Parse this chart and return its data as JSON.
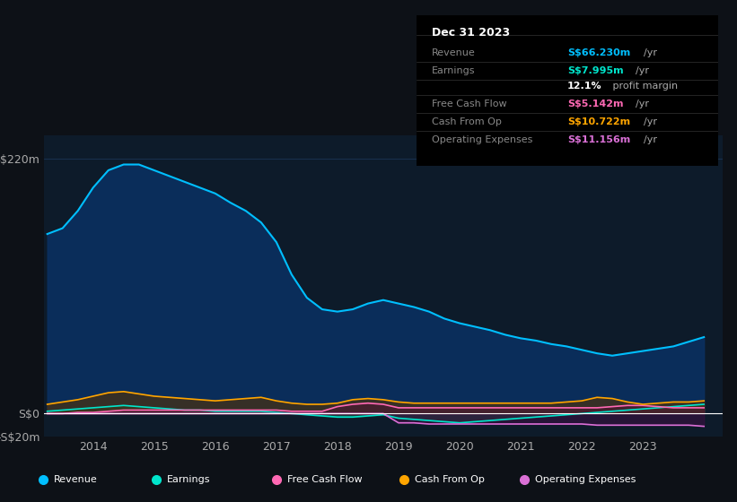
{
  "bg_color": "#0d1117",
  "plot_bg_color": "#0d1b2a",
  "title_box_color": "#000000",
  "grid_color": "#1e3a5f",
  "zero_line_color": "#ffffff",
  "ylabel_text": "S$220m",
  "ylabel_zero": "S$0",
  "ylabel_neg": "-S$20m",
  "ylim": [
    -20,
    240
  ],
  "yticks": [
    -20,
    0,
    220
  ],
  "xlim_start": 2013.2,
  "xlim_end": 2024.3,
  "xticks": [
    2014,
    2015,
    2016,
    2017,
    2018,
    2019,
    2020,
    2021,
    2022,
    2023
  ],
  "info_box": {
    "date": "Dec 31 2023",
    "rows": [
      {
        "label": "Revenue",
        "value": "S$66.230m",
        "unit": "/yr",
        "color": "#00bfff"
      },
      {
        "label": "Earnings",
        "value": "S$7.995m",
        "unit": "/yr",
        "color": "#00e5cc"
      },
      {
        "label": "",
        "value": "12.1%",
        "unit": " profit margin",
        "color": "#ffffff"
      },
      {
        "label": "Free Cash Flow",
        "value": "S$5.142m",
        "unit": "/yr",
        "color": "#ff69b4"
      },
      {
        "label": "Cash From Op",
        "value": "S$10.722m",
        "unit": "/yr",
        "color": "#ffa500"
      },
      {
        "label": "Operating Expenses",
        "value": "S$11.156m",
        "unit": "/yr",
        "color": "#da70d6"
      }
    ]
  },
  "legend": [
    {
      "label": "Revenue",
      "color": "#00bfff"
    },
    {
      "label": "Earnings",
      "color": "#00e5cc"
    },
    {
      "label": "Free Cash Flow",
      "color": "#ff69b4"
    },
    {
      "label": "Cash From Op",
      "color": "#ffa500"
    },
    {
      "label": "Operating Expenses",
      "color": "#da70d6"
    }
  ],
  "shaded_region_end": 2023.5,
  "revenue": {
    "color": "#00bfff",
    "fill_color": "#0a3060",
    "x": [
      2013.25,
      2013.5,
      2013.75,
      2014.0,
      2014.25,
      2014.5,
      2014.75,
      2015.0,
      2015.25,
      2015.5,
      2015.75,
      2016.0,
      2016.25,
      2016.5,
      2016.75,
      2017.0,
      2017.25,
      2017.5,
      2017.75,
      2018.0,
      2018.25,
      2018.5,
      2018.75,
      2019.0,
      2019.25,
      2019.5,
      2019.75,
      2020.0,
      2020.25,
      2020.5,
      2020.75,
      2021.0,
      2021.25,
      2021.5,
      2021.75,
      2022.0,
      2022.25,
      2022.5,
      2022.75,
      2023.0,
      2023.25,
      2023.5,
      2023.75,
      2024.0
    ],
    "y": [
      155,
      160,
      175,
      195,
      210,
      215,
      215,
      210,
      205,
      200,
      195,
      190,
      182,
      175,
      165,
      148,
      120,
      100,
      90,
      88,
      90,
      95,
      98,
      95,
      92,
      88,
      82,
      78,
      75,
      72,
      68,
      65,
      63,
      60,
      58,
      55,
      52,
      50,
      52,
      54,
      56,
      58,
      62,
      66
    ]
  },
  "earnings": {
    "color": "#00e5cc",
    "fill_color": "#1a4a40",
    "x": [
      2013.25,
      2013.5,
      2013.75,
      2014.0,
      2014.25,
      2014.5,
      2014.75,
      2015.0,
      2015.25,
      2015.5,
      2015.75,
      2016.0,
      2016.25,
      2016.5,
      2016.75,
      2017.0,
      2017.25,
      2017.5,
      2017.75,
      2018.0,
      2018.25,
      2018.5,
      2018.75,
      2019.0,
      2019.25,
      2019.5,
      2019.75,
      2020.0,
      2020.25,
      2020.5,
      2020.75,
      2021.0,
      2021.25,
      2021.5,
      2021.75,
      2022.0,
      2022.25,
      2022.5,
      2022.75,
      2023.0,
      2023.25,
      2023.5,
      2023.75,
      2024.0
    ],
    "y": [
      2,
      3,
      4,
      5,
      6,
      7,
      6,
      5,
      4,
      3,
      3,
      2,
      2,
      2,
      2,
      1,
      0,
      -1,
      -2,
      -3,
      -3,
      -2,
      -1,
      -4,
      -5,
      -6,
      -7,
      -8,
      -7,
      -6,
      -5,
      -4,
      -3,
      -2,
      -1,
      0,
      1,
      2,
      3,
      4,
      5,
      6,
      7,
      8
    ]
  },
  "free_cash_flow": {
    "color": "#ff69b4",
    "fill_color": "#4a1a30",
    "x": [
      2013.25,
      2013.5,
      2013.75,
      2014.0,
      2014.25,
      2014.5,
      2014.75,
      2015.0,
      2015.25,
      2015.5,
      2015.75,
      2016.0,
      2016.25,
      2016.5,
      2016.75,
      2017.0,
      2017.25,
      2017.5,
      2017.75,
      2018.0,
      2018.25,
      2018.5,
      2018.75,
      2019.0,
      2019.25,
      2019.5,
      2019.75,
      2020.0,
      2020.25,
      2020.5,
      2020.75,
      2021.0,
      2021.25,
      2021.5,
      2021.75,
      2022.0,
      2022.25,
      2022.5,
      2022.75,
      2023.0,
      2023.25,
      2023.5,
      2023.75,
      2024.0
    ],
    "y": [
      0,
      0,
      1,
      1,
      2,
      3,
      3,
      3,
      3,
      3,
      3,
      3,
      3,
      3,
      3,
      3,
      2,
      2,
      2,
      6,
      8,
      9,
      8,
      5,
      5,
      5,
      5,
      5,
      5,
      5,
      5,
      5,
      5,
      5,
      5,
      5,
      5,
      6,
      7,
      7,
      6,
      5,
      5,
      5
    ]
  },
  "cash_from_op": {
    "color": "#ffa500",
    "fill_color": "#4a3010",
    "x": [
      2013.25,
      2013.5,
      2013.75,
      2014.0,
      2014.25,
      2014.5,
      2014.75,
      2015.0,
      2015.25,
      2015.5,
      2015.75,
      2016.0,
      2016.25,
      2016.5,
      2016.75,
      2017.0,
      2017.25,
      2017.5,
      2017.75,
      2018.0,
      2018.25,
      2018.5,
      2018.75,
      2019.0,
      2019.25,
      2019.5,
      2019.75,
      2020.0,
      2020.25,
      2020.5,
      2020.75,
      2021.0,
      2021.25,
      2021.5,
      2021.75,
      2022.0,
      2022.25,
      2022.5,
      2022.75,
      2023.0,
      2023.25,
      2023.5,
      2023.75,
      2024.0
    ],
    "y": [
      8,
      10,
      12,
      15,
      18,
      19,
      17,
      15,
      14,
      13,
      12,
      11,
      12,
      13,
      14,
      11,
      9,
      8,
      8,
      9,
      12,
      13,
      12,
      10,
      9,
      9,
      9,
      9,
      9,
      9,
      9,
      9,
      9,
      9,
      10,
      11,
      14,
      13,
      10,
      8,
      9,
      10,
      10,
      11
    ]
  },
  "operating_expenses": {
    "color": "#da70d6",
    "fill_color": "#3a1040",
    "x": [
      2013.25,
      2013.5,
      2013.75,
      2014.0,
      2014.25,
      2014.5,
      2014.75,
      2015.0,
      2015.25,
      2015.5,
      2015.75,
      2016.0,
      2016.25,
      2016.5,
      2016.75,
      2017.0,
      2017.25,
      2017.5,
      2017.75,
      2018.0,
      2018.25,
      2018.5,
      2018.75,
      2019.0,
      2019.25,
      2019.5,
      2019.75,
      2020.0,
      2020.25,
      2020.5,
      2020.75,
      2021.0,
      2021.25,
      2021.5,
      2021.75,
      2022.0,
      2022.25,
      2022.5,
      2022.75,
      2023.0,
      2023.25,
      2023.5,
      2023.75,
      2024.0
    ],
    "y": [
      0,
      0,
      0,
      0,
      0,
      0,
      0,
      0,
      0,
      0,
      0,
      0,
      0,
      0,
      0,
      0,
      0,
      0,
      0,
      0,
      0,
      0,
      0,
      -8,
      -8,
      -9,
      -9,
      -9,
      -9,
      -9,
      -9,
      -9,
      -9,
      -9,
      -9,
      -9,
      -10,
      -10,
      -10,
      -10,
      -10,
      -10,
      -10,
      -11
    ]
  }
}
